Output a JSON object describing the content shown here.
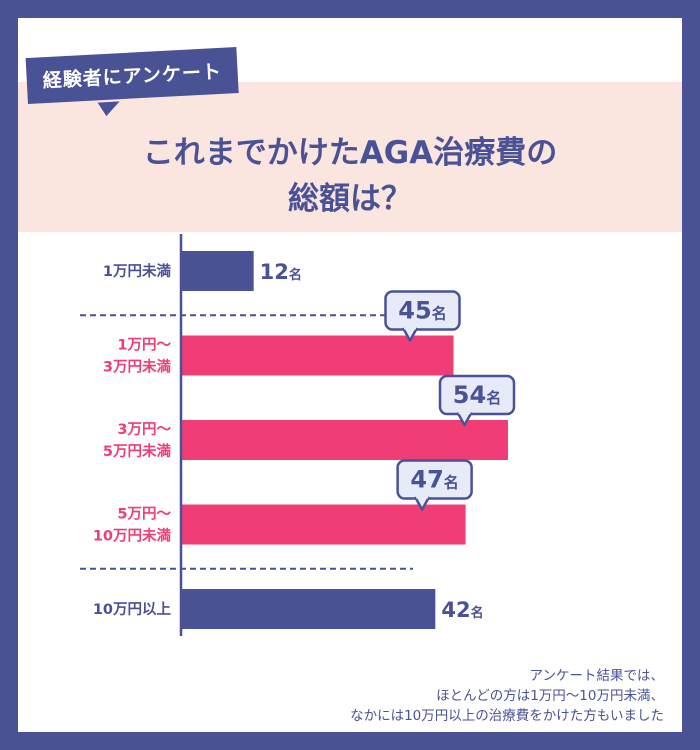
{
  "header": {
    "badge": "経験者にアンケート",
    "title_line1": "これまでかけたAGA治療費の",
    "title_line2": "総額は？"
  },
  "colors": {
    "navy": "#4a5296",
    "pink": "#f03d75",
    "header_bg": "#fbe5df",
    "callout_bg": "#e6ebf7"
  },
  "chart_data": {
    "type": "bar",
    "orientation": "horizontal",
    "unit": "名",
    "categories": [
      {
        "lines": [
          "1万円未満"
        ],
        "highlight": false,
        "callout": false
      },
      {
        "lines": [
          "1万円～",
          "3万円未満"
        ],
        "highlight": true,
        "callout": true
      },
      {
        "lines": [
          "3万円～",
          "5万円未満"
        ],
        "highlight": true,
        "callout": true
      },
      {
        "lines": [
          "5万円～",
          "10万円未満"
        ],
        "highlight": true,
        "callout": true
      },
      {
        "lines": [
          "10万円以上"
        ],
        "highlight": false,
        "callout": false
      }
    ],
    "values": [
      12,
      45,
      54,
      47,
      42
    ],
    "x_range": [
      0,
      54
    ],
    "dividers_between": [
      0,
      3
    ]
  },
  "footnote": {
    "line1": "アンケート結果では、",
    "line2": "ほとんどの方は1万円～10万円未満、",
    "line3": "なかには10万円以上の治療費をかけた方もいました"
  }
}
